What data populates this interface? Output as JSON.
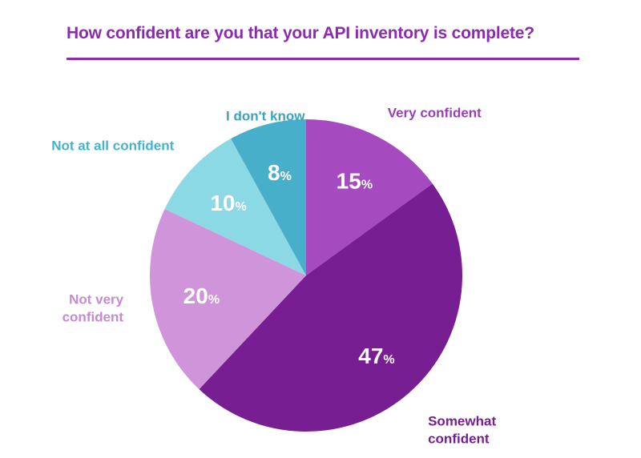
{
  "chart_data": {
    "type": "pie",
    "title": "How confident are you that your API inventory is complete?",
    "unit": "%",
    "slices": [
      {
        "label_lines": [
          "Very confident"
        ],
        "value": 15,
        "color": "#a64bbf",
        "label_color": "#9b3fb8",
        "label_anchor": "start"
      },
      {
        "label_lines": [
          "Somewhat",
          "confident"
        ],
        "value": 47,
        "color": "#781e93",
        "label_color": "#781e93",
        "label_anchor": "start"
      },
      {
        "label_lines": [
          "Not very",
          "confident"
        ],
        "value": 20,
        "color": "#cf94d9",
        "label_color": "#c58ad2",
        "label_anchor": "end"
      },
      {
        "label_lines": [
          "Not at all confident"
        ],
        "value": 10,
        "color": "#8cd9e6",
        "label_color": "#45b3cc",
        "label_anchor": "end"
      },
      {
        "label_lines": [
          "I don't know"
        ],
        "value": 8,
        "color": "#48afcb",
        "label_color": "#3aa3c0",
        "label_anchor": "middle"
      }
    ]
  }
}
